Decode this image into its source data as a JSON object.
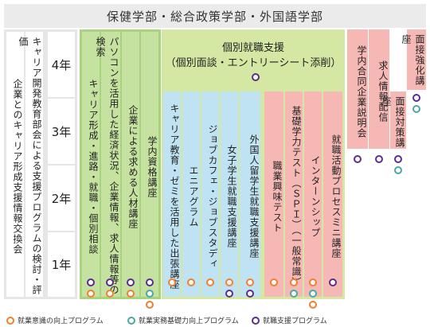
{
  "title": "保健学部・総合政策学部・外国語学部",
  "grades": [
    "4年",
    "3年",
    "2年",
    "1年"
  ],
  "gray_columns": [
    "企業とのキャリア形成支援情報交換会",
    "キャリア開発教育部会による支援プログラムの検討・評価"
  ],
  "green_columns": [
    "キャリア形成・進路・就職・個別相談",
    "パソコンを活用した経済状況、企業情報、求人情報等の検索",
    "企業による求める人材講座",
    "学内資格講座"
  ],
  "banner": {
    "line1": "個別就職支援",
    "line2": "（個別面談・エントリーシート添削）"
  },
  "blue_columns": [
    "キャリア教育・ゼミを活用した出張講座",
    "エニアグラム",
    "ジョブカフェ・ジョブスタディ",
    "女子学生就職支援講座",
    "外国人留学生就職支援講座"
  ],
  "pink_columns": [
    "職業興味テスト",
    "基礎学力テスト（ＳＰＩ）（一般常識）",
    "インターンシップ",
    "就職活動プロセスミニ講座"
  ],
  "right_columns": [
    "学内合同企業説明会",
    "求人情報配信",
    "面接対策講座",
    "面接強化講座"
  ],
  "legend": [
    {
      "label": "就業意識の向上プログラム",
      "color": "#f08030"
    },
    {
      "label": "就業実務基礎力向上プログラム",
      "color": "#4aa8a0"
    },
    {
      "label": "就職支援プログラム",
      "color": "#5a2d91"
    }
  ]
}
